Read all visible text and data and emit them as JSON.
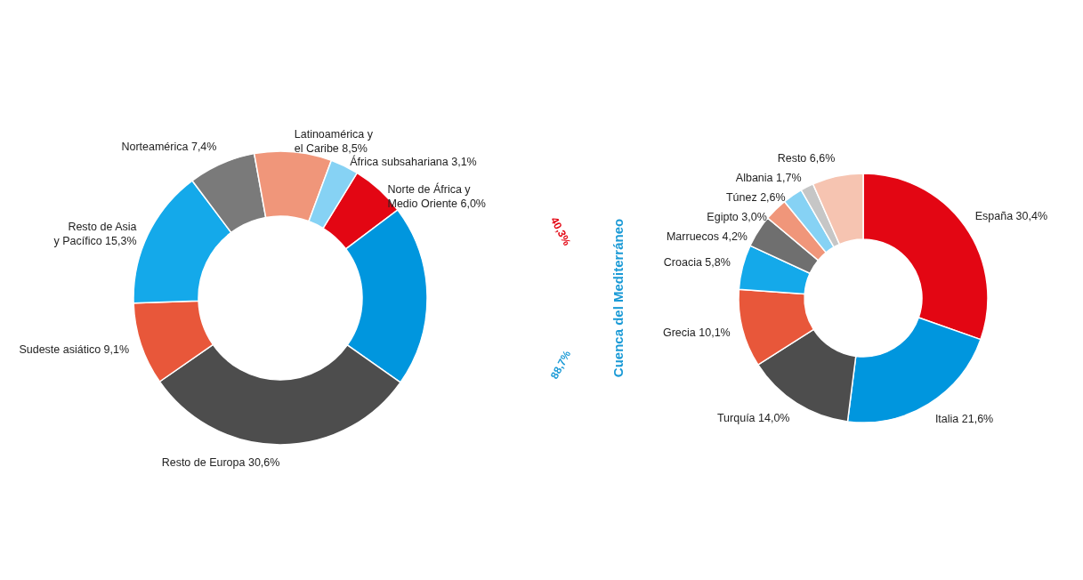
{
  "chart_data": [
    {
      "type": "donut",
      "categories": [
        "Norte de África y Medio Oriente",
        null,
        "Resto de Europa",
        "Sudeste asiático",
        "Resto de Asia y Pacífico",
        "Norteamérica",
        "Latinoamérica y el Caribe",
        "África subsahariana"
      ],
      "values": [
        6.0,
        20.0,
        30.6,
        9.1,
        15.3,
        7.4,
        8.5,
        3.1
      ],
      "value_labels": [
        "6,0%",
        null,
        "30,6%",
        "9,1%",
        "15,3%",
        "7,4%",
        "8,5%",
        "3,1%"
      ],
      "colors": [
        "#e30613",
        "#0096de",
        "#4d4d4d",
        "#e8573a",
        "#14a9ea",
        "#7a7a7a",
        "#f0967a",
        "#86d2f4"
      ],
      "annotations": [
        "40,3%",
        "88,7%",
        "Cuenca del Mediterráneo"
      ]
    },
    {
      "type": "donut",
      "categories": [
        "España",
        "Italia",
        "Turquía",
        "Grecia",
        "Croacia",
        "Marruecos",
        "Egipto",
        "Túnez",
        "Albania",
        "Resto"
      ],
      "values": [
        30.4,
        21.6,
        14.0,
        10.1,
        5.8,
        4.2,
        3.0,
        2.6,
        1.7,
        6.6
      ],
      "value_labels": [
        "30,4%",
        "21,6%",
        "14,0%",
        "10,1%",
        "5,8%",
        "4,2%",
        "3,0%",
        "2,6%",
        "1,7%",
        "6,6%"
      ],
      "colors": [
        "#e30613",
        "#0096de",
        "#4d4d4d",
        "#e8573a",
        "#14a9ea",
        "#6f6f6f",
        "#f0967a",
        "#86d2f4",
        "#c6c6c6",
        "#f6c4b1"
      ]
    }
  ]
}
